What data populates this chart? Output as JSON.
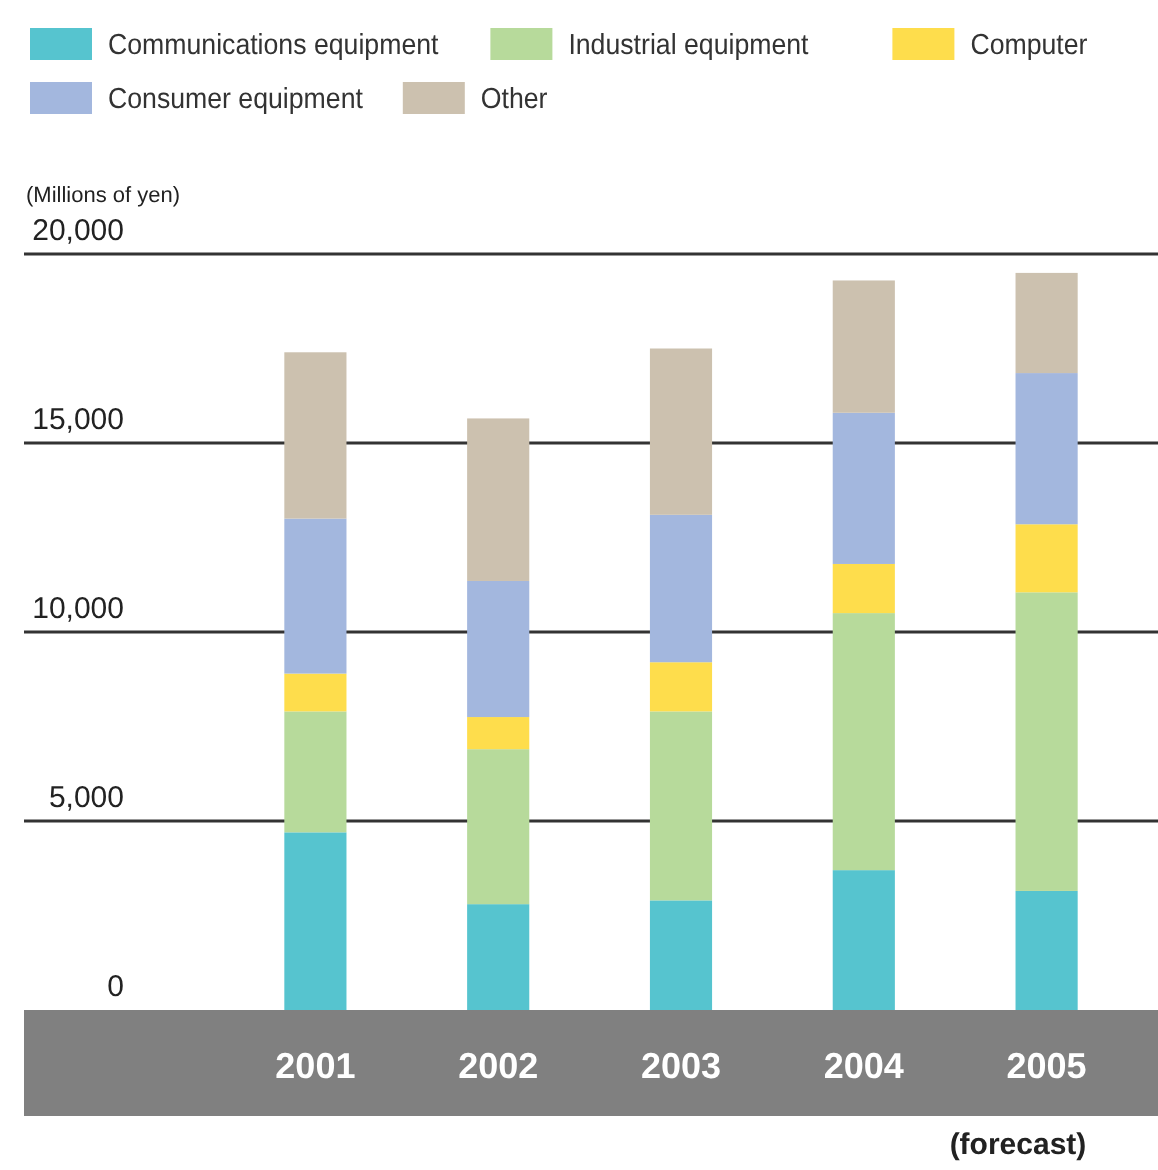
{
  "chart_data": {
    "type": "bar",
    "stacked": true,
    "ylabel": "(Millions of yen)",
    "categories": [
      "2001",
      "2002",
      "2003",
      "2004",
      "2005"
    ],
    "series": [
      {
        "name": "Communications equipment",
        "color": "#56c4cf",
        "values": [
          4700,
          2800,
          2900,
          3700,
          3150
        ]
      },
      {
        "name": "Industrial equipment",
        "color": "#b7da9b",
        "values": [
          3200,
          4100,
          5000,
          6800,
          7900
        ]
      },
      {
        "name": "Computer",
        "color": "#fedd4c",
        "values": [
          1000,
          850,
          1300,
          1300,
          1800
        ]
      },
      {
        "name": "Consumer equipment",
        "color": "#a3b7de",
        "values": [
          4100,
          3600,
          3900,
          4000,
          4000
        ]
      },
      {
        "name": "Other",
        "color": "#ccc1af",
        "values": [
          4400,
          4300,
          4400,
          3500,
          2650
        ]
      }
    ],
    "ylim": [
      0,
      20000
    ],
    "yticks": [
      {
        "value": 0,
        "label": "0"
      },
      {
        "value": 5000,
        "label": "5,000"
      },
      {
        "value": 10000,
        "label": "10,000"
      },
      {
        "value": 15000,
        "label": "15,000"
      },
      {
        "value": 20000,
        "label": "20,000"
      }
    ],
    "grid": "y",
    "legend": "top",
    "annotations": [
      "(forecast)"
    ]
  }
}
